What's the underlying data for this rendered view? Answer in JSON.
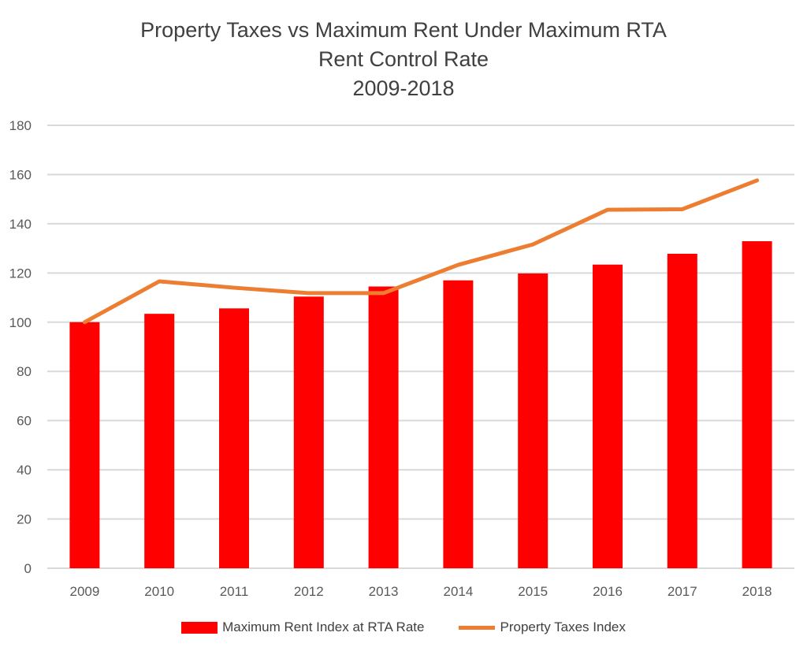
{
  "chart_data": {
    "type": "bar+line",
    "title": [
      "Property Taxes vs Maximum Rent Under Maximum RTA",
      "Rent Control Rate",
      "2009-2018"
    ],
    "categories": [
      "2009",
      "2010",
      "2011",
      "2012",
      "2013",
      "2014",
      "2015",
      "2016",
      "2017",
      "2018"
    ],
    "series": [
      {
        "name": "Maximum Rent Index at RTA Rate",
        "type": "bar",
        "color": "#ff0000",
        "values": [
          100,
          103.4,
          105.6,
          110.4,
          114.5,
          117.0,
          119.8,
          123.4,
          127.8,
          132.9
        ]
      },
      {
        "name": "Property Taxes Index",
        "type": "line",
        "color": "#ed7d31",
        "values": [
          100,
          116.6,
          114.0,
          111.8,
          111.8,
          123.3,
          131.6,
          145.7,
          145.9,
          157.6
        ]
      }
    ],
    "ylim": [
      0,
      180
    ],
    "yticks": [
      "0",
      "20",
      "40",
      "60",
      "80",
      "100",
      "120",
      "140",
      "160",
      "180"
    ],
    "grid": true,
    "legend": "bottom"
  }
}
